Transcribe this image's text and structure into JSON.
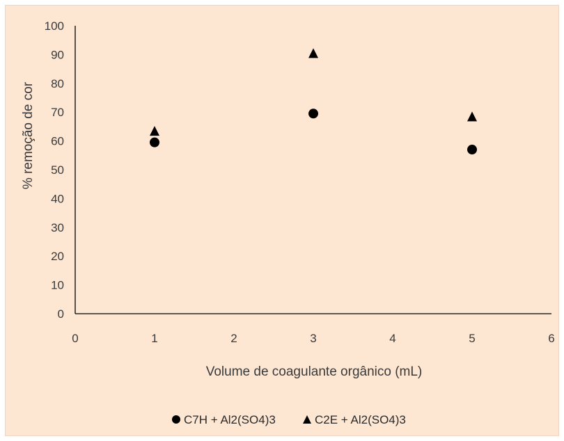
{
  "chart_data": {
    "type": "scatter",
    "title": "",
    "xlabel": "Volume de coagulante orgânico (mL)",
    "ylabel": "% remoção de cor",
    "xlim": [
      0,
      6
    ],
    "ylim": [
      0,
      100
    ],
    "xticks": [
      "0",
      "1",
      "2",
      "3",
      "4",
      "5",
      "6"
    ],
    "yticks": [
      "0",
      "10",
      "20",
      "30",
      "40",
      "50",
      "60",
      "70",
      "80",
      "90",
      "100"
    ],
    "grid": false,
    "legend_position": "bottom",
    "series": [
      {
        "name": "C7H + Al2(SO4)3",
        "marker": "circle",
        "color": "#000000",
        "x": [
          1,
          3,
          5
        ],
        "y": [
          59.5,
          69.5,
          57
        ]
      },
      {
        "name": "C2E + Al2(SO4)3",
        "marker": "triangle",
        "color": "#000000",
        "x": [
          1,
          3,
          5
        ],
        "y": [
          63.5,
          90.5,
          68.5
        ]
      }
    ]
  }
}
